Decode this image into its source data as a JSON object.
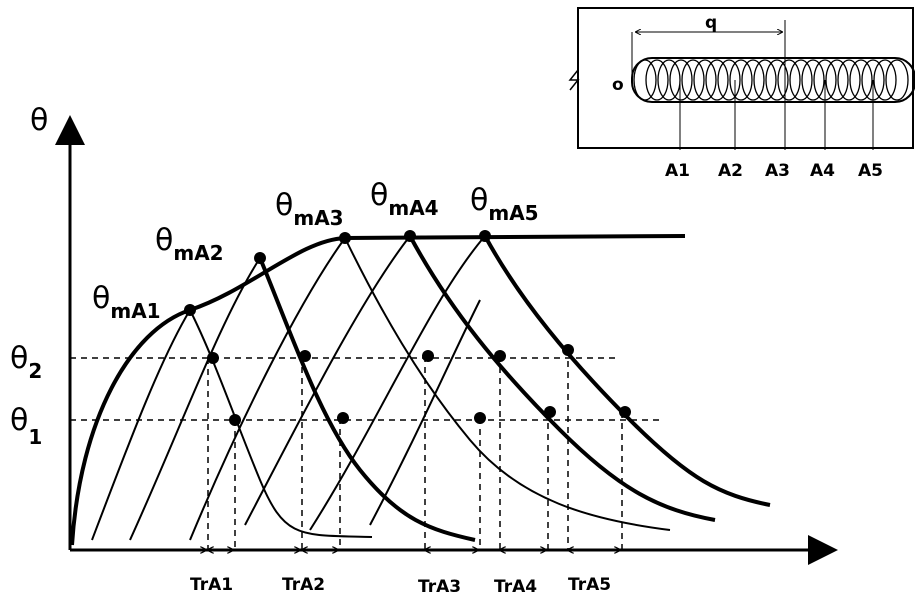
{
  "axis": {
    "y_label": "θ"
  },
  "levels": [
    {
      "symbol": "θ",
      "subscript": "2"
    },
    {
      "symbol": "θ",
      "subscript": "1"
    }
  ],
  "peaks": [
    {
      "symbol": "θ",
      "subscript": "mA1"
    },
    {
      "symbol": "θ",
      "subscript": "mA2"
    },
    {
      "symbol": "θ",
      "subscript": "mA3"
    },
    {
      "symbol": "θ",
      "subscript": "mA4"
    },
    {
      "symbol": "θ",
      "subscript": "mA5"
    }
  ],
  "intervals": [
    "TrA1",
    "TrA2",
    "TrA3",
    "TrA4",
    "TrA5"
  ],
  "inset": {
    "spacing": "q",
    "origin": "o",
    "points": [
      "A1",
      "A2",
      "A3",
      "A4",
      "A5"
    ]
  }
}
